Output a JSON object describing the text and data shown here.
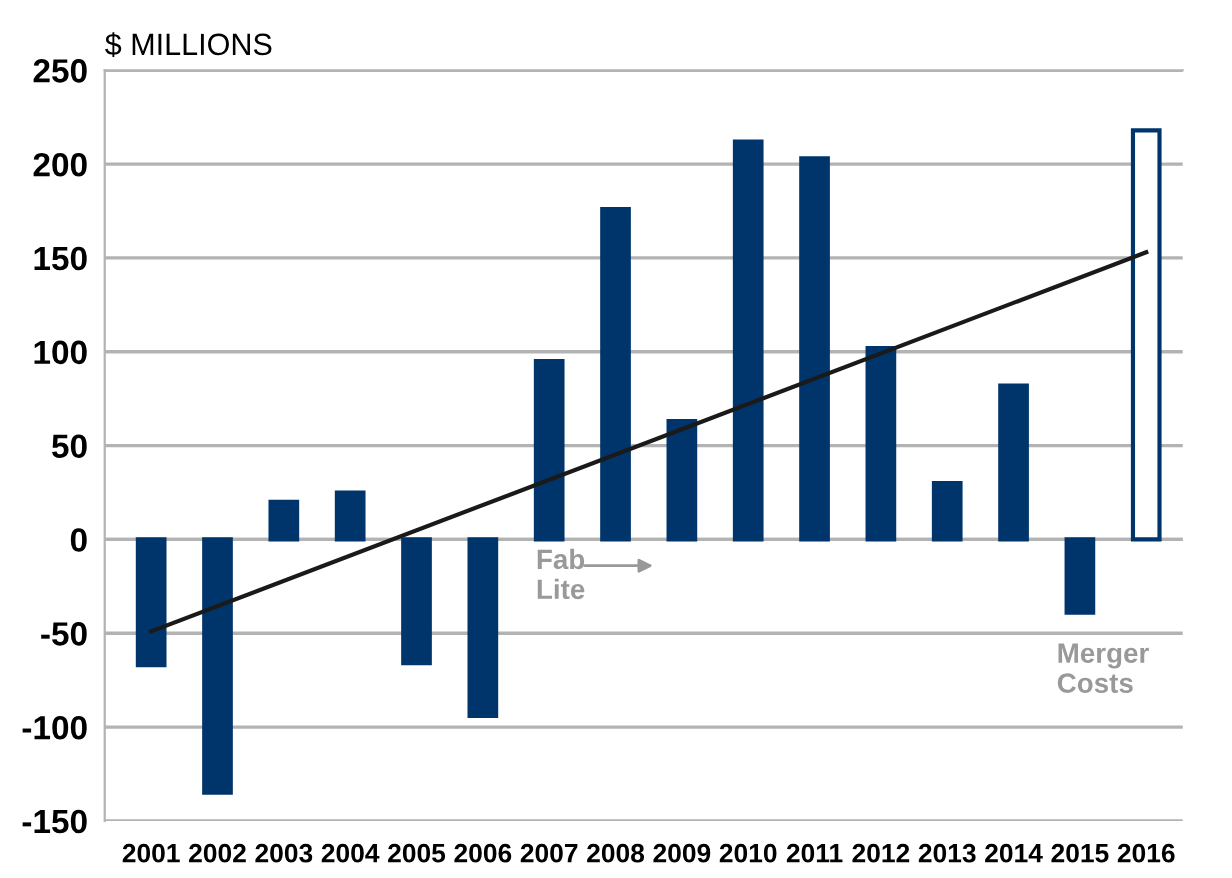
{
  "chart_data": {
    "type": "bar",
    "ylabel": "$ MILLIONS",
    "categories": [
      "2001",
      "2002",
      "2003",
      "2004",
      "2005",
      "2006",
      "2007",
      "2008",
      "2009",
      "2010",
      "2011",
      "2012",
      "2013",
      "2014",
      "2015",
      "2016"
    ],
    "series": [
      {
        "color": "#00356b",
        "colors": [
          "#00356b",
          "#00356b",
          "#00356b",
          "#00356b",
          "#00356b",
          "#00356b",
          "#00356b",
          "#00356b",
          "#00356b",
          "#00356b",
          "#00356b",
          "#00356b",
          "#00356b",
          "#00356b",
          "#00356b",
          "#ffffff"
        ],
        "values": [
          -67,
          -135,
          20,
          25,
          -66,
          -94,
          95,
          176,
          63,
          212,
          203,
          102,
          30,
          82,
          -39,
          218
        ]
      },
      {
        "type": "line",
        "color": "#1a1a1a",
        "values": [
          -49,
          null,
          null,
          null,
          null,
          null,
          null,
          null,
          null,
          null,
          null,
          null,
          null,
          null,
          null,
          153
        ]
      }
    ],
    "ylim": [
      -150,
      250
    ],
    "yticks": [
      -150,
      -100,
      -50,
      0,
      50,
      100,
      150,
      200,
      250
    ],
    "grid": "y",
    "legend": false,
    "annotations": [
      "Fab\nLite",
      "Merger\nCosts"
    ]
  }
}
